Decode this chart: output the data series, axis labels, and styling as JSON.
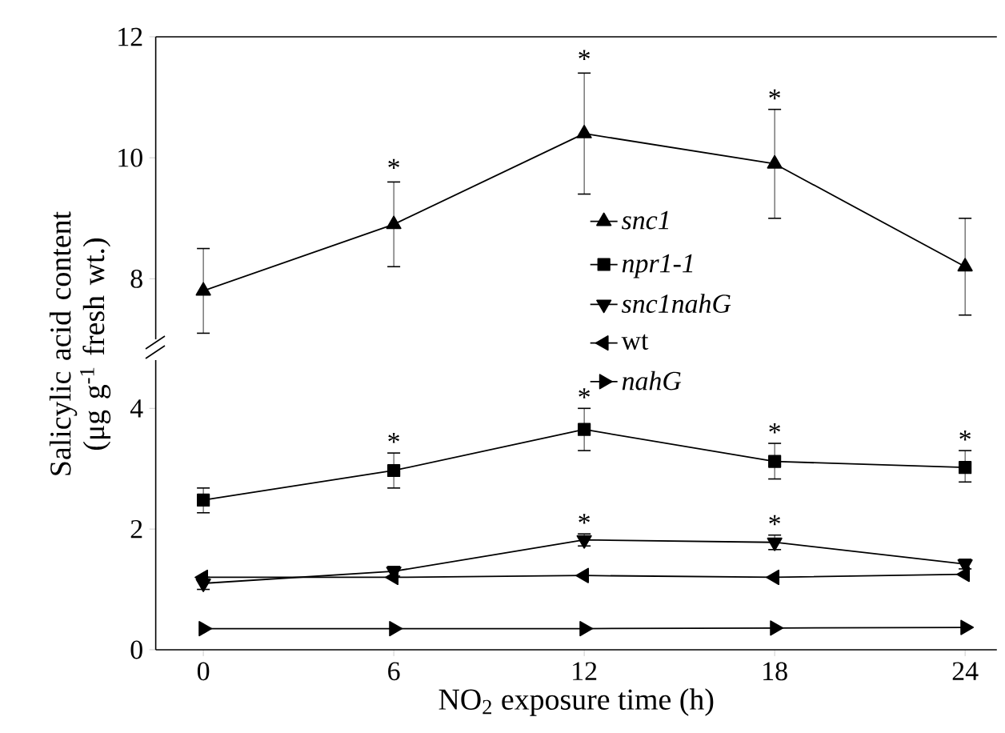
{
  "chart_data": [
    {
      "type": "line",
      "x": [
        0,
        6,
        12,
        18,
        24
      ],
      "xlim": [
        -1.5,
        25
      ],
      "ylim": [
        7,
        12
      ],
      "yticks": [
        8,
        10,
        12
      ],
      "tick_labels": "y",
      "legend": "right",
      "series": [
        {
          "name": "*snc1*",
          "color": "#000000",
          "marker": "triangle",
          "values": [
            7.8,
            8.9,
            10.4,
            9.9,
            8.2
          ],
          "errors": [
            [
              7.1,
              8.5
            ],
            [
              8.2,
              9.6
            ],
            [
              9.4,
              11.4
            ],
            [
              9.0,
              10.8
            ],
            [
              7.4,
              9.0
            ]
          ]
        }
      ],
      "annotations": [
        {
          "text": "*",
          "x": 6,
          "y": 9.65
        },
        {
          "text": "*",
          "x": 12,
          "y": 11.45
        },
        {
          "text": "*",
          "x": 18,
          "y": 10.8
        }
      ]
    },
    {
      "type": "line",
      "x": [
        0,
        6,
        12,
        18,
        24
      ],
      "xlim": [
        -1.5,
        25
      ],
      "xticks": [
        0,
        6,
        12,
        18,
        24
      ],
      "ylim": [
        0,
        4.8
      ],
      "yticks": [
        0,
        2,
        4
      ],
      "legend": "top",
      "xlabel": "NO$_{2}$ exposure time (h)",
      "ylabel": "Salicylic acid content (μg g$^{-1}$ fresh wt.)",
      "series": [
        {
          "name": "*npr1-1*",
          "color": "#000000",
          "marker": "square",
          "values": [
            2.48,
            2.97,
            3.65,
            3.12,
            3.02
          ],
          "errors": [
            [
              2.27,
              2.68
            ],
            [
              2.68,
              3.26
            ],
            [
              3.3,
              4.0
            ],
            [
              2.83,
              3.42
            ],
            [
              2.78,
              3.3
            ]
          ]
        },
        {
          "name": "*snc1nahG*",
          "color": "#000000",
          "marker": "triangle-down",
          "values": [
            1.1,
            1.3,
            1.82,
            1.78,
            1.42
          ],
          "errors": [
            0.1,
            0.08,
            0.1,
            0.12,
            0.08
          ]
        },
        {
          "name": "wt",
          "color": "#000000",
          "marker": "triangle-left",
          "values": [
            1.2,
            1.2,
            1.23,
            1.2,
            1.25
          ]
        },
        {
          "name": "*nahG*",
          "color": "#000000",
          "marker": "triangle-right",
          "values": [
            0.35,
            0.35,
            0.35,
            0.36,
            0.37
          ]
        }
      ],
      "annotations": [
        {
          "text": "*",
          "x": 6,
          "y": 3.26
        },
        {
          "text": "*",
          "x": 12,
          "y": 4.0
        },
        {
          "text": "*",
          "x": 18,
          "y": 3.42
        },
        {
          "text": "*",
          "x": 24,
          "y": 3.3
        },
        {
          "text": "*",
          "x": 12,
          "y": 1.92
        },
        {
          "text": "*",
          "x": 18,
          "y": 1.9
        }
      ]
    }
  ]
}
